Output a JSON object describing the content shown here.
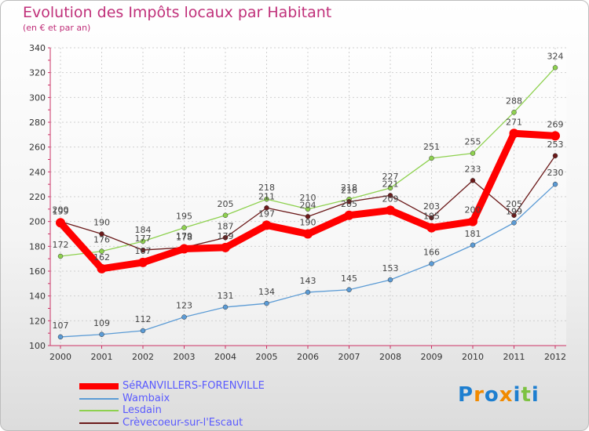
{
  "chart_data": {
    "type": "line",
    "title": "Evolution des Impôts locaux par Habitant",
    "subtitle": "(en € et par an)",
    "x": [
      "2000",
      "2001",
      "2002",
      "2003",
      "2004",
      "2005",
      "2006",
      "2007",
      "2008",
      "2009",
      "2010",
      "2011",
      "2012"
    ],
    "ylim": [
      100,
      340
    ],
    "yticks": [
      100,
      120,
      140,
      160,
      180,
      200,
      220,
      240,
      260,
      280,
      300,
      320,
      340
    ],
    "series": [
      {
        "name": "Wambaix",
        "color": "#5b9bd5",
        "values": [
          107,
          109,
          112,
          123,
          131,
          134,
          143,
          145,
          153,
          166,
          181,
          199,
          230
        ]
      },
      {
        "name": "Lesdain",
        "color": "#8ed14f",
        "values": [
          172,
          176,
          184,
          195,
          205,
          218,
          210,
          218,
          227,
          251,
          255,
          288,
          324
        ]
      },
      {
        "name": "Crèvecoeur-sur-l'Escaut",
        "color": "#6b1a1a",
        "values": [
          200,
          190,
          177,
          179,
          187,
          211,
          204,
          216,
          221,
          203,
          233,
          205,
          253
        ]
      },
      {
        "name": "SéRANVILLERS-FORENVILLE",
        "color": "#ff0000",
        "values": [
          199,
          162,
          167,
          178,
          179,
          197,
          190,
          205,
          209,
          195,
          200,
          271,
          269
        ]
      }
    ],
    "legend": [
      {
        "name": "SéRANVILLERS-FORENVILLE",
        "color": "#ff0000"
      },
      {
        "name": "Wambaix",
        "color": "#5b9bd5"
      },
      {
        "name": "Lesdain",
        "color": "#8ed14f"
      },
      {
        "name": "Crèvecoeur-sur-l'Escaut",
        "color": "#6b1a1a"
      }
    ]
  },
  "logo": {
    "text": "Proxiti",
    "colors": [
      "#1e7fd0",
      "#f18a00",
      "#1e7fd0",
      "#f18a00",
      "#1e7fd0",
      "#7dc242",
      "#1e7fd0"
    ]
  }
}
